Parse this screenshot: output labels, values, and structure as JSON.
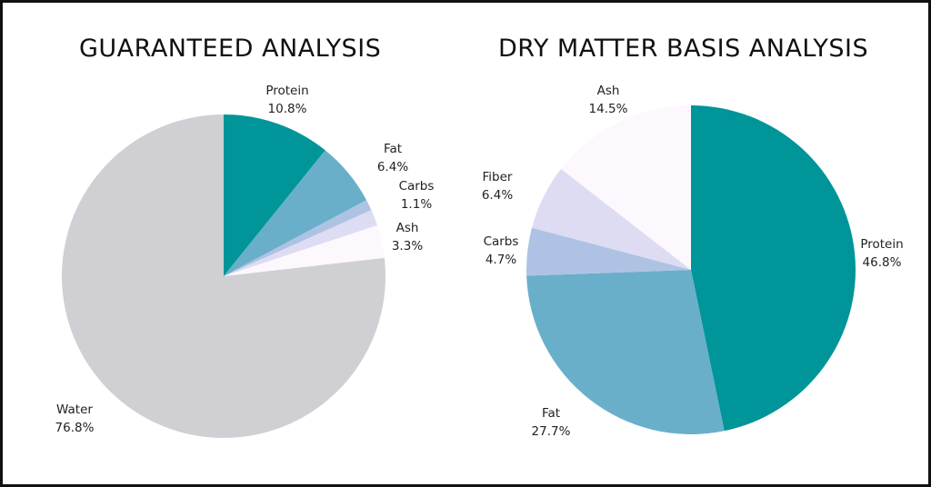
{
  "colors": {
    "protein": "#009598",
    "fat": "#6aafca",
    "carbs": "#aec3e3",
    "fiber": "#dddcf2",
    "ash": "#fdf8fd",
    "water": "#d0cfd4"
  },
  "chart_data": [
    {
      "type": "pie",
      "title": "GUARANTEED ANALYSIS",
      "slices": [
        {
          "label": "Protein",
          "value": 10.8,
          "value_label": "10.8%",
          "color_key": "protein"
        },
        {
          "label": "Fat",
          "value": 6.4,
          "value_label": "6.4%",
          "color_key": "fat"
        },
        {
          "label": "Carbs",
          "value": 1.1,
          "value_label": "1.1%",
          "color_key": "carbs"
        },
        {
          "label": "",
          "value": 1.6,
          "value_label": "",
          "color_key": "fiber"
        },
        {
          "label": "Ash",
          "value": 3.3,
          "value_label": "3.3%",
          "color_key": "ash"
        },
        {
          "label": "Water",
          "value": 76.8,
          "value_label": "76.8%",
          "color_key": "water"
        }
      ]
    },
    {
      "type": "pie",
      "title": "DRY MATTER BASIS ANALYSIS",
      "slices": [
        {
          "label": "Protein",
          "value": 46.8,
          "value_label": "46.8%",
          "color_key": "protein"
        },
        {
          "label": "Fat",
          "value": 27.7,
          "value_label": "27.7%",
          "color_key": "fat"
        },
        {
          "label": "Carbs",
          "value": 4.7,
          "value_label": "4.7%",
          "color_key": "carbs"
        },
        {
          "label": "Fiber",
          "value": 6.4,
          "value_label": "6.4%",
          "color_key": "fiber"
        },
        {
          "label": "Ash",
          "value": 14.5,
          "value_label": "14.5%",
          "color_key": "ash"
        }
      ]
    }
  ]
}
